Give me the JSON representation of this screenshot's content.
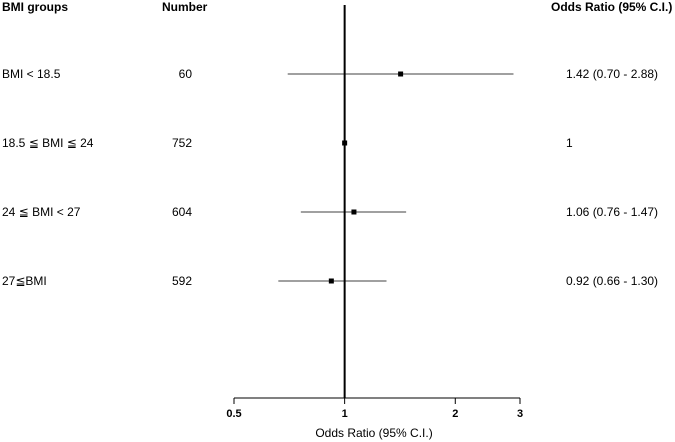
{
  "chart_data": {
    "type": "forest",
    "headers": {
      "group": "BMI groups",
      "number": "Number",
      "or": "Odds Ratio (95% C.I.)"
    },
    "rows": [
      {
        "group": "BMI < 18.5",
        "number": "60",
        "or_text": "1.42 (0.70 - 2.88)",
        "or": 1.42,
        "lo": 0.7,
        "hi": 2.88
      },
      {
        "group": "18.5 ≦ BMI ≦ 24",
        "number": "752",
        "or_text": "1",
        "or": 1.0,
        "lo": 1.0,
        "hi": 1.0
      },
      {
        "group": "24 ≦ BMI < 27",
        "number": "604",
        "or_text": "1.06 (0.76 - 1.47)",
        "or": 1.06,
        "lo": 0.76,
        "hi": 1.47
      },
      {
        "group": "27≦BMI",
        "number": "592",
        "or_text": "0.92 (0.66 - 1.30)",
        "or": 0.92,
        "lo": 0.66,
        "hi": 1.3
      }
    ],
    "x_scale": "log",
    "xlim": [
      0.5,
      3
    ],
    "x_ticks": [
      0.5,
      1,
      2,
      3
    ],
    "x_tick_labels": [
      "0.5",
      "1",
      "2",
      "3"
    ],
    "reference_line": 1,
    "xlabel": "Odds Ratio (95% C.I.)",
    "grid": false
  }
}
